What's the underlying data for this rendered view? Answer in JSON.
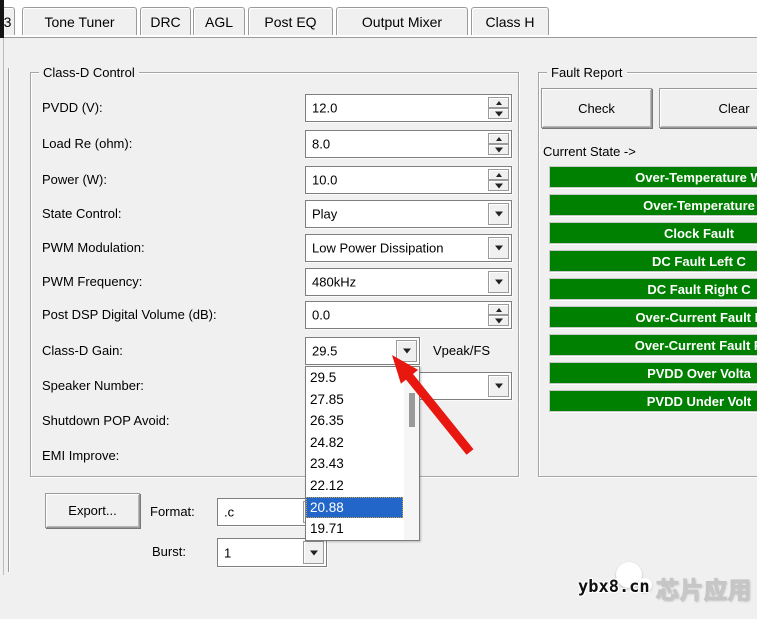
{
  "tabs": {
    "partial_label": "3",
    "items": [
      "Tone Tuner",
      "DRC",
      "AGL",
      "Post EQ",
      "Output Mixer",
      "Class H"
    ]
  },
  "class_d_control": {
    "title": "Class-D Control",
    "rows": [
      {
        "label": "PVDD (V):",
        "type": "spin",
        "value": "12.0"
      },
      {
        "label": "Load Re (ohm):",
        "type": "spin",
        "value": "8.0"
      },
      {
        "label": "Power (W):",
        "type": "spin",
        "value": "10.0"
      },
      {
        "label": "State Control:",
        "type": "combo",
        "value": "Play"
      },
      {
        "label": "PWM Modulation:",
        "type": "combo",
        "value": "Low Power Dissipation"
      },
      {
        "label": "PWM Frequency:",
        "type": "combo",
        "value": "480kHz"
      },
      {
        "label": "Post DSP Digital Volume (dB):",
        "type": "spin",
        "value": "0.0"
      },
      {
        "label": "Class-D Gain:",
        "type": "combo",
        "value": "29.5",
        "suffix": "Vpeak/FS"
      },
      {
        "label": "Speaker Number:",
        "type": "combo",
        "value": ""
      },
      {
        "label": "Shutdown POP Avoid:",
        "type": "hidden"
      },
      {
        "label": "EMI Improve:",
        "type": "hidden"
      }
    ],
    "gain_dropdown": {
      "options": [
        "29.5",
        "27.85",
        "26.35",
        "24.82",
        "23.43",
        "22.12",
        "20.88",
        "19.71"
      ],
      "selected": "20.88"
    }
  },
  "export_section": {
    "button_label": "Export...",
    "format_label": "Format:",
    "format_value": ".c",
    "burst_label": "Burst:",
    "burst_value": "1"
  },
  "fault_report": {
    "title": "Fault Report",
    "check_label": "Check",
    "clear_label": "Clear",
    "current_state_label": "Current State ->",
    "bars": [
      "Over-Temperature W",
      "Over-Temperature",
      "Clock Fault",
      "DC Fault Left C",
      "DC Fault Right C",
      "Over-Current Fault L",
      "Over-Current Fault R",
      "PVDD Over Volta",
      "PVDD Under Volt"
    ]
  },
  "annotation": {
    "arrow_color": "#e81710",
    "arrow_icon": "red-pointer-arrow-icon"
  },
  "watermark": {
    "site": "ybx8.cn",
    "brand": "芯片应用",
    "logo_icon": "chat-bubbles-icon"
  },
  "colors": {
    "fault_ok_green": "#008000",
    "selection_blue": "#2166c8",
    "panel_gray": "#f0f0f0"
  }
}
